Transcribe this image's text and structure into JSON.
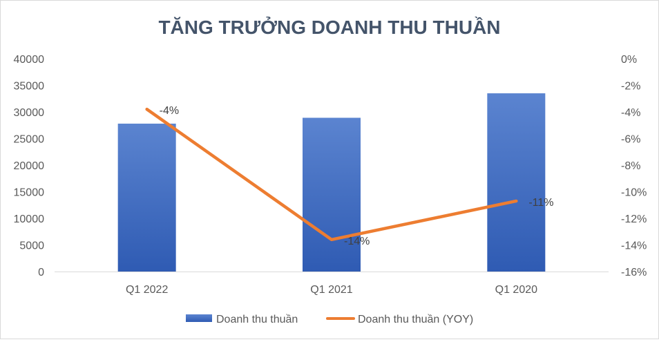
{
  "chart_data": {
    "type": "bar",
    "title": "TĂNG TRƯỞNG DOANH THU THUẦN",
    "categories": [
      "Q1 2022",
      "Q1 2021",
      "Q1 2020"
    ],
    "y_left": {
      "lim": [
        0,
        40000
      ],
      "ticks": [
        0,
        5000,
        10000,
        15000,
        20000,
        25000,
        30000,
        35000,
        40000
      ],
      "tick_labels": [
        "0",
        "5000",
        "10000",
        "15000",
        "20000",
        "25000",
        "30000",
        "35000",
        "40000"
      ]
    },
    "y_right": {
      "lim": [
        -16,
        0
      ],
      "ticks": [
        0,
        -2,
        -4,
        -6,
        -8,
        -10,
        -12,
        -14,
        -16
      ],
      "tick_labels": [
        "0%",
        "-2%",
        "-4%",
        "-6%",
        "-8%",
        "-10%",
        "-12%",
        "-14%",
        "-16%"
      ]
    },
    "series": [
      {
        "name": "Doanh thu thuần",
        "type": "bar",
        "axis": "left",
        "values": [
          27800,
          28900,
          33500
        ],
        "color": "#4472C4"
      },
      {
        "name": "Doanh thu thuần (YOY)",
        "type": "line",
        "axis": "right",
        "values": [
          -3.8,
          -13.6,
          -10.7
        ],
        "data_labels": [
          "-4%",
          "-14%",
          "-11%"
        ],
        "color": "#ED7D31"
      }
    ],
    "legend": "bottom",
    "grid": false
  }
}
